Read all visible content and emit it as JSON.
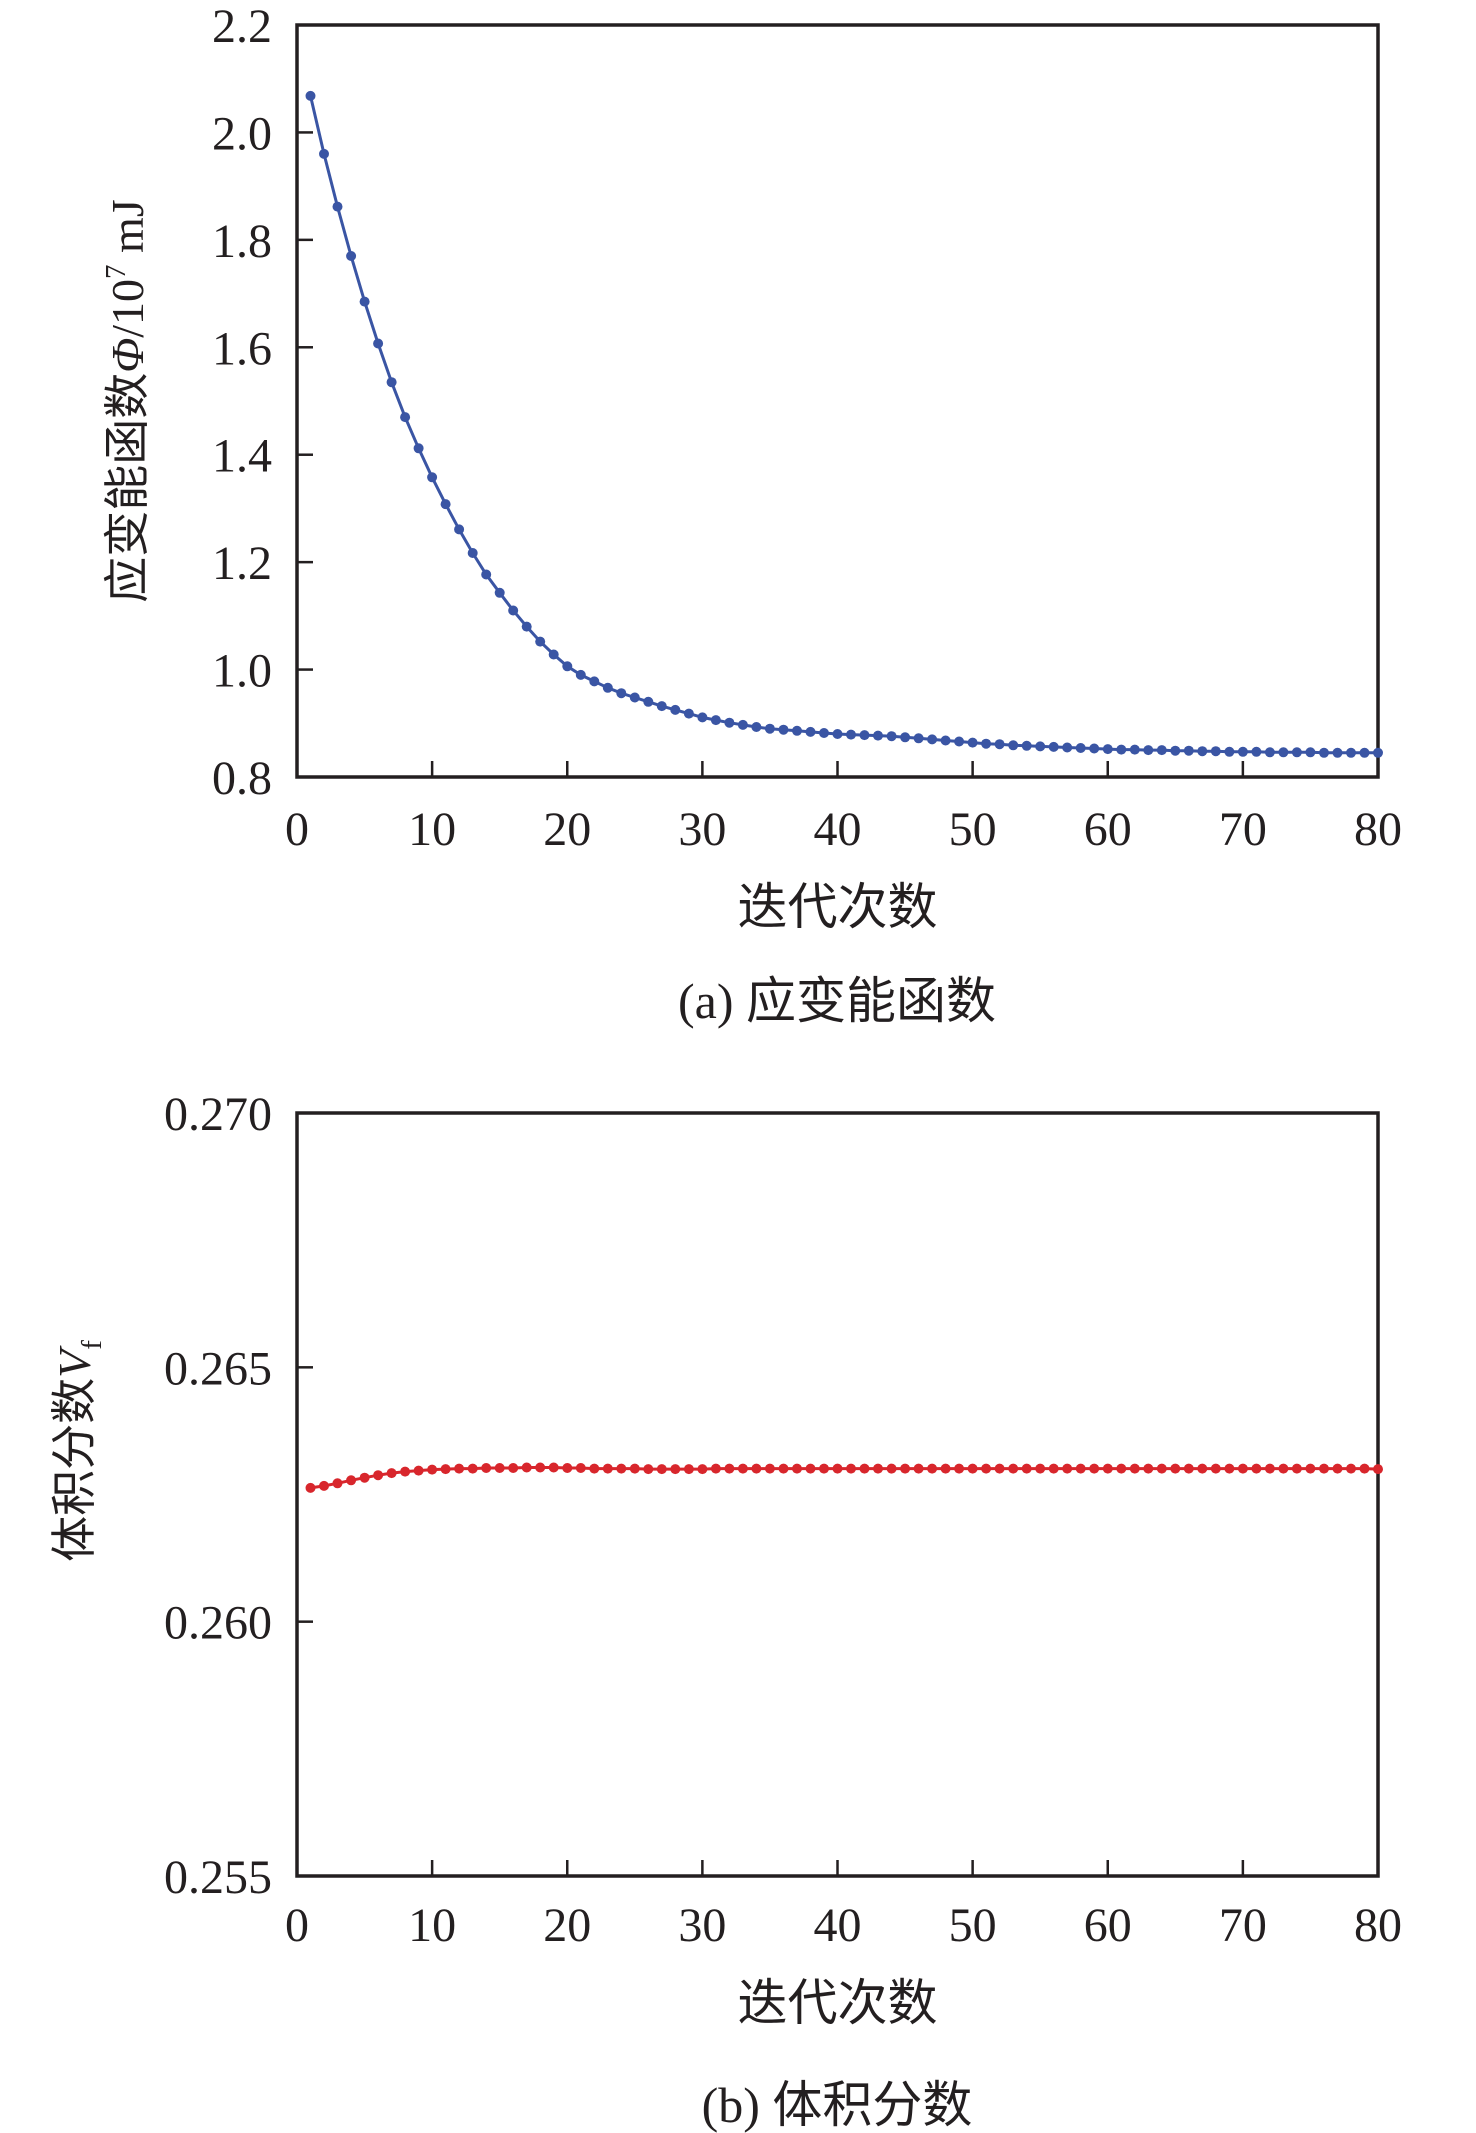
{
  "figure": {
    "background": "#ffffff",
    "axis_color": "#231f20",
    "panels": [
      {
        "caption": "(a) 应变能函数"
      },
      {
        "caption": "(b) 体积分数"
      }
    ]
  },
  "chart_data": [
    {
      "type": "line",
      "panel": "a",
      "title": "(a) 应变能函数",
      "xlabel": "迭代次数",
      "ylabel": "应变能函数Φ/10^7 mJ",
      "ylabel_parts": [
        {
          "text": "应变能函数",
          "style": "normal"
        },
        {
          "text": "Φ",
          "style": "italic"
        },
        {
          "text": "/10",
          "style": "normal"
        },
        {
          "text": "7",
          "style": "super"
        },
        {
          "text": " mJ",
          "style": "normal"
        }
      ],
      "color": "#3A55A4",
      "xlim": [
        0,
        80
      ],
      "ylim": [
        0.8,
        2.2
      ],
      "xticks": [
        0,
        10,
        20,
        30,
        40,
        50,
        60,
        70,
        80
      ],
      "yticks": [
        {
          "value": 2.2,
          "label": "2.2"
        },
        {
          "value": 2.0,
          "label": "2.0"
        },
        {
          "value": 1.8,
          "label": "1.8"
        },
        {
          "value": 1.6,
          "label": "1.6"
        },
        {
          "value": 1.4,
          "label": "1.4"
        },
        {
          "value": 1.2,
          "label": "1.2"
        },
        {
          "value": 1.0,
          "label": "1.0"
        },
        {
          "value": 0.8,
          "label": "0.8"
        }
      ],
      "x_start": 1,
      "x_step": 1,
      "values": [
        2.068,
        1.96,
        1.862,
        1.77,
        1.685,
        1.607,
        1.535,
        1.47,
        1.412,
        1.358,
        1.308,
        1.261,
        1.217,
        1.177,
        1.143,
        1.11,
        1.08,
        1.052,
        1.028,
        1.006,
        0.99,
        0.978,
        0.966,
        0.956,
        0.948,
        0.94,
        0.932,
        0.925,
        0.918,
        0.911,
        0.906,
        0.901,
        0.897,
        0.893,
        0.89,
        0.888,
        0.886,
        0.884,
        0.882,
        0.88,
        0.879,
        0.878,
        0.877,
        0.876,
        0.874,
        0.872,
        0.87,
        0.868,
        0.866,
        0.864,
        0.862,
        0.861,
        0.859,
        0.858,
        0.857,
        0.856,
        0.855,
        0.854,
        0.853,
        0.852,
        0.851,
        0.851,
        0.85,
        0.85,
        0.849,
        0.849,
        0.848,
        0.848,
        0.847,
        0.847,
        0.847,
        0.846,
        0.846,
        0.846,
        0.846,
        0.845,
        0.845,
        0.845,
        0.845,
        0.845
      ]
    },
    {
      "type": "line",
      "panel": "b",
      "title": "(b) 体积分数",
      "xlabel": "迭代次数",
      "ylabel": "体积分数V_f",
      "ylabel_parts": [
        {
          "text": "体积分数",
          "style": "normal"
        },
        {
          "text": "V",
          "style": "italic"
        },
        {
          "text": "f",
          "style": "sub"
        }
      ],
      "color": "#D8262C",
      "xlim": [
        0,
        80
      ],
      "ylim": [
        0.255,
        0.27
      ],
      "xticks": [
        0,
        10,
        20,
        30,
        40,
        50,
        60,
        70,
        80
      ],
      "yticks": [
        {
          "value": 0.27,
          "label": "0.270"
        },
        {
          "value": 0.265,
          "label": "0.265"
        },
        {
          "value": 0.26,
          "label": "0.260"
        },
        {
          "value": 0.255,
          "label": "0.255"
        }
      ],
      "x_start": 1,
      "x_step": 1,
      "values": [
        0.26263,
        0.26267,
        0.26272,
        0.26278,
        0.26283,
        0.26288,
        0.26292,
        0.26295,
        0.26297,
        0.26299,
        0.263,
        0.26301,
        0.26301,
        0.26302,
        0.26302,
        0.26302,
        0.26303,
        0.26303,
        0.26303,
        0.26302,
        0.26302,
        0.26301,
        0.26301,
        0.26301,
        0.26301,
        0.263,
        0.263,
        0.263,
        0.263,
        0.263,
        0.26301,
        0.26301,
        0.26301,
        0.26301,
        0.26301,
        0.26301,
        0.26301,
        0.26301,
        0.26301,
        0.26301,
        0.26301,
        0.26301,
        0.26301,
        0.26301,
        0.26301,
        0.26301,
        0.26301,
        0.26301,
        0.26301,
        0.26301,
        0.26301,
        0.26301,
        0.26301,
        0.26301,
        0.26301,
        0.26301,
        0.26301,
        0.26301,
        0.26301,
        0.26301,
        0.26301,
        0.26301,
        0.26301,
        0.26301,
        0.26301,
        0.26301,
        0.26301,
        0.26301,
        0.26301,
        0.26301,
        0.26301,
        0.26301,
        0.26301,
        0.26301,
        0.26301,
        0.26301,
        0.26301,
        0.26301,
        0.26301,
        0.263
      ]
    }
  ]
}
